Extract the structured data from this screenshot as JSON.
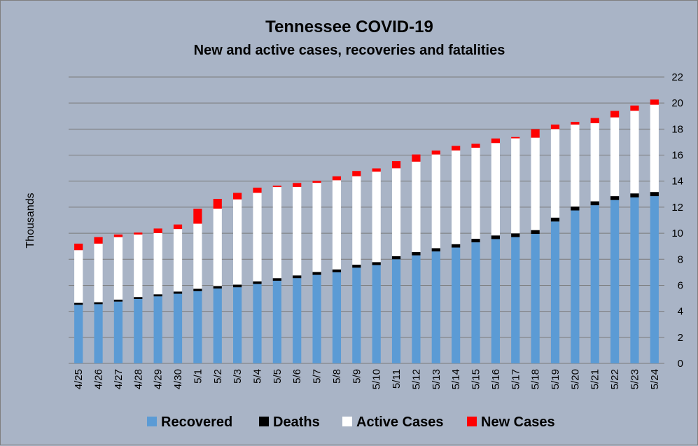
{
  "chart_data": {
    "type": "bar",
    "stacked": true,
    "title": "Tennessee COVID-19",
    "subtitle": "New and active cases, recoveries and fatalities",
    "xlabel": "",
    "ylabel": "Thousands",
    "ylim": [
      0,
      22
    ],
    "yticks": [
      0,
      2,
      4,
      6,
      8,
      10,
      12,
      14,
      16,
      18,
      20,
      22
    ],
    "y_axis_side": "right",
    "grid": true,
    "legend_position": "bottom",
    "categories": [
      "4/25",
      "4/26",
      "4/27",
      "4/28",
      "4/29",
      "4/30",
      "5/1",
      "5/2",
      "5/3",
      "5/4",
      "5/5",
      "5/6",
      "5/7",
      "5/8",
      "5/9",
      "5/10",
      "5/11",
      "5/12",
      "5/13",
      "5/14",
      "5/15",
      "5/16",
      "5/17",
      "5/18",
      "5/19",
      "5/20",
      "5/21",
      "5/22",
      "5/23",
      "5/24"
    ],
    "series": [
      {
        "name": "Recovered",
        "color": "#5b9bd5",
        "values": [
          4.5,
          4.55,
          4.75,
          4.95,
          5.15,
          5.35,
          5.55,
          5.75,
          5.85,
          6.1,
          6.35,
          6.55,
          6.8,
          7.0,
          7.35,
          7.55,
          8.0,
          8.3,
          8.6,
          8.9,
          9.3,
          9.55,
          9.7,
          9.95,
          10.9,
          11.75,
          12.15,
          12.55,
          12.75,
          12.85
        ]
      },
      {
        "name": "Deaths",
        "color": "#000000",
        "values": [
          0.15,
          0.15,
          0.15,
          0.15,
          0.16,
          0.17,
          0.18,
          0.19,
          0.2,
          0.2,
          0.2,
          0.21,
          0.22,
          0.22,
          0.23,
          0.23,
          0.24,
          0.25,
          0.25,
          0.26,
          0.27,
          0.28,
          0.29,
          0.29,
          0.3,
          0.3,
          0.3,
          0.3,
          0.31,
          0.32
        ]
      },
      {
        "name": "Active Cases",
        "color": "#ffffff",
        "values": [
          4.05,
          4.5,
          4.8,
          4.8,
          4.7,
          4.8,
          5.0,
          5.95,
          6.55,
          6.8,
          7.0,
          6.8,
          6.85,
          6.85,
          6.8,
          6.95,
          6.75,
          6.95,
          7.2,
          7.2,
          7.0,
          7.1,
          7.3,
          7.1,
          6.8,
          6.3,
          6.0,
          6.05,
          6.35,
          6.7
        ]
      },
      {
        "name": "New Cases",
        "color": "#ff0000",
        "values": [
          0.5,
          0.5,
          0.2,
          0.15,
          0.35,
          0.35,
          1.15,
          0.75,
          0.5,
          0.4,
          0.1,
          0.3,
          0.15,
          0.3,
          0.4,
          0.25,
          0.55,
          0.55,
          0.3,
          0.35,
          0.3,
          0.35,
          0.1,
          0.65,
          0.35,
          0.2,
          0.4,
          0.5,
          0.4,
          0.4
        ]
      }
    ]
  }
}
